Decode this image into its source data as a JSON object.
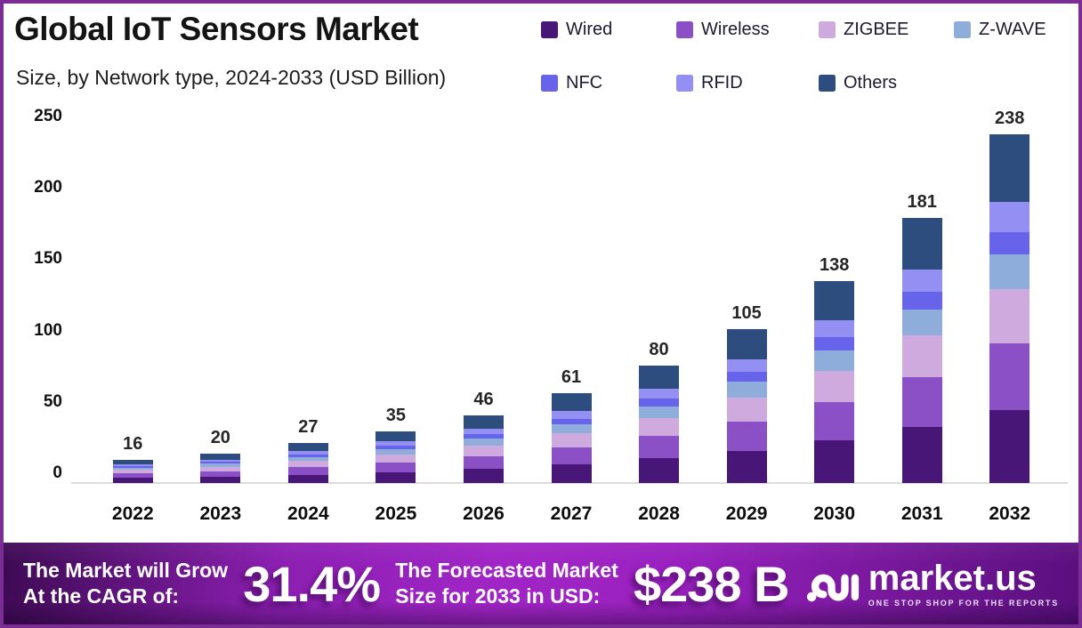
{
  "chart_data": {
    "type": "bar",
    "stacked": true,
    "title": "Global IoT Sensors Market",
    "subtitle": "Size, by Network type, 2024-2033 (USD Billion)",
    "categories": [
      "2022",
      "2023",
      "2024",
      "2025",
      "2026",
      "2027",
      "2028",
      "2029",
      "2030",
      "2031",
      "2032"
    ],
    "totals": [
      16,
      20,
      27,
      35,
      46,
      61,
      80,
      105,
      138,
      181,
      238
    ],
    "series": [
      {
        "name": "Wired",
        "color": "#471677",
        "values": [
          3.4,
          4.2,
          5.7,
          7.4,
          9.7,
          12.8,
          16.8,
          22.1,
          29.0,
          38.0,
          50.0
        ]
      },
      {
        "name": "Wireless",
        "color": "#8b50c5",
        "values": [
          3.0,
          3.8,
          5.1,
          6.7,
          8.7,
          11.6,
          15.2,
          20.0,
          26.2,
          34.4,
          45.2
        ]
      },
      {
        "name": "ZIGBEE",
        "color": "#cfaade",
        "values": [
          2.5,
          3.1,
          4.2,
          5.4,
          7.1,
          9.5,
          12.4,
          16.3,
          21.4,
          28.1,
          36.9
        ]
      },
      {
        "name": "Z-WAVE",
        "color": "#8fadda",
        "values": [
          1.6,
          2.0,
          2.7,
          3.5,
          4.6,
          6.1,
          8.0,
          10.5,
          13.8,
          18.1,
          23.8
        ]
      },
      {
        "name": "NFC",
        "color": "#6763ea",
        "values": [
          1.0,
          1.3,
          1.8,
          2.3,
          3.0,
          4.0,
          5.2,
          6.8,
          9.0,
          11.8,
          15.5
        ]
      },
      {
        "name": "RFID",
        "color": "#948ff2",
        "values": [
          1.4,
          1.7,
          2.3,
          3.0,
          3.9,
          5.2,
          6.8,
          8.9,
          11.7,
          15.4,
          20.2
        ]
      },
      {
        "name": "Others",
        "color": "#2d4d7e",
        "values": [
          3.1,
          3.9,
          5.3,
          6.8,
          9.0,
          11.9,
          15.6,
          20.5,
          26.9,
          35.3,
          46.4
        ]
      }
    ],
    "ylim": [
      0,
      250
    ],
    "yticks": [
      0,
      50,
      100,
      150,
      200,
      250
    ],
    "grid": false,
    "legend_position": "top-right"
  },
  "banner": {
    "cagr_label_line1": "The Market will Grow",
    "cagr_label_line2": "At the CAGR of:",
    "cagr_value": "31.4%",
    "forecast_label_line1": "The Forecasted Market",
    "forecast_label_line2": "Size for 2033 in USD:",
    "forecast_value": "$238 B",
    "logo_name": "market.us",
    "logo_tagline": "ONE STOP SHOP FOR THE REPORTS"
  },
  "colors": {
    "frame_border": "#7b2c95",
    "banner_gradient_start": "#3d0a53",
    "banner_gradient_mid": "#a125c6",
    "banner_gradient_end": "#5a0f7e",
    "axis_baseline": "#dcdcdc"
  }
}
